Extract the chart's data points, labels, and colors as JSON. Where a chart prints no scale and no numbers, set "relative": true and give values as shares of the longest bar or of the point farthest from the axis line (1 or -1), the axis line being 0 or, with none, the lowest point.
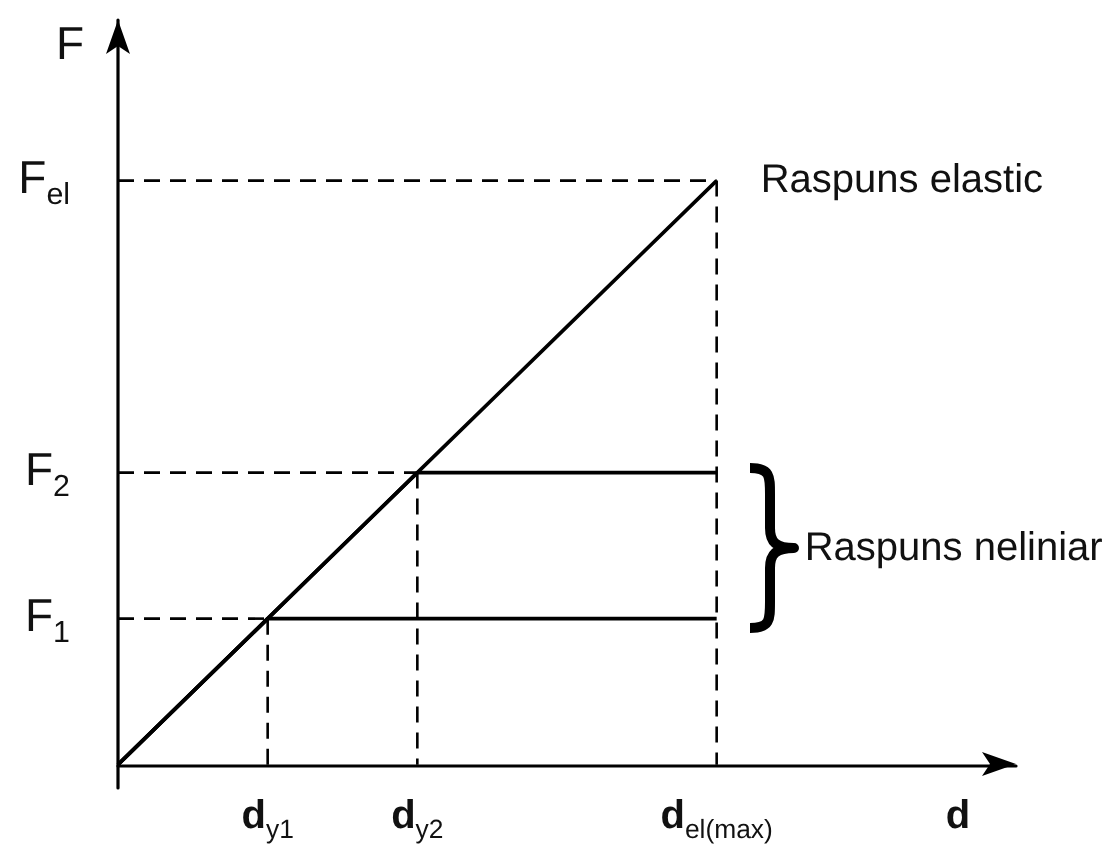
{
  "chart_data": {
    "type": "line",
    "relative": true,
    "xlabel": "d",
    "ylabel": "F",
    "marker": "none",
    "line_style": "solid",
    "categories": [
      null,
      "d$_{y1}$",
      "d$_{y2}$",
      null,
      "d$_{el(max)}$",
      null,
      null
    ],
    "annotations": [
      "Raspuns neliniar"
    ],
    "series": [
      {
        "name": "Raspuns elastic",
        "color": "#000000",
        "values": [
          0,
          0.25,
          0.5,
          0.75,
          1,
          null,
          null
        ]
      },
      {
        "color": "#000000",
        "values": [
          0,
          0.25,
          0.25,
          0.25,
          0.25,
          null,
          null
        ]
      },
      {
        "color": "#000000",
        "values": [
          0,
          0.25,
          0.5,
          0.5,
          0.5,
          null,
          null
        ]
      },
      {
        "name": "F$_{el}$",
        "color": "#000000",
        "values": [
          1,
          1,
          1,
          1,
          1,
          null,
          null
        ],
        "line_style": "dashed"
      },
      {
        "color": "#000000",
        "x": [
          "d$_{el(max)}$",
          "d$_{el(max)}$"
        ],
        "values": [
          1,
          0
        ],
        "line_style": "dashed"
      },
      {
        "name": "F$_{2}$",
        "color": "#000000",
        "values": [
          0.5,
          0.5,
          0.5,
          null,
          null,
          null,
          null
        ],
        "line_style": "dashed"
      },
      {
        "color": "#000000",
        "x": [
          "d$_{y2}$",
          "d$_{y2}$"
        ],
        "values": [
          0.5,
          0
        ],
        "line_style": "dashed"
      },
      {
        "name": "F$_{1}$",
        "color": "#000000",
        "values": [
          0.25,
          0.25,
          null,
          null,
          null,
          null,
          null
        ],
        "line_style": "dashed"
      },
      {
        "color": "#000000",
        "x": [
          "d$_{y1}$",
          "d$_{y1}$"
        ],
        "values": [
          0.25,
          0
        ],
        "line_style": "dashed"
      }
    ]
  }
}
